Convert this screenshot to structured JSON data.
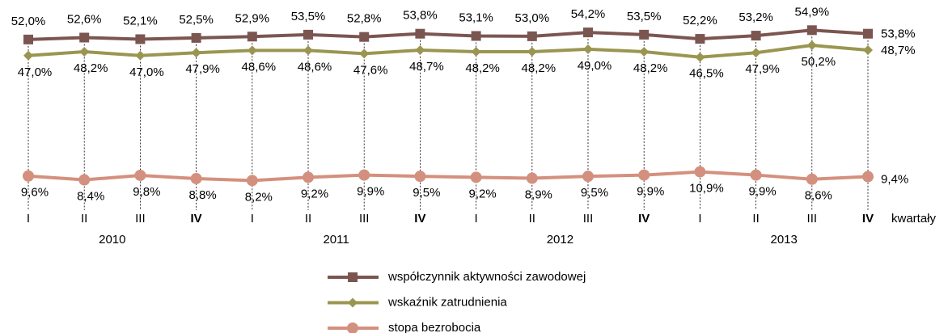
{
  "chart_data": {
    "type": "line",
    "categories": [
      "I",
      "II",
      "III",
      "IV",
      "I",
      "II",
      "III",
      "IV",
      "I",
      "II",
      "III",
      "IV",
      "I",
      "II",
      "III",
      "IV"
    ],
    "years": [
      "2010",
      "2011",
      "2012",
      "2013"
    ],
    "x_label": "kwartały",
    "ylim": [
      0,
      60
    ],
    "series": [
      {
        "name": "współczynnik aktywności zawodowej",
        "color": "#7b5651",
        "marker": "square",
        "values": [
          52.0,
          52.6,
          52.1,
          52.5,
          52.9,
          53.5,
          52.8,
          53.8,
          53.1,
          53.0,
          54.2,
          53.5,
          52.2,
          53.2,
          54.9,
          53.8
        ],
        "value_labels": [
          "52,0%",
          "52,6%",
          "52,1%",
          "52,5%",
          "52,9%",
          "53,5%",
          "52,8%",
          "53,8%",
          "53,1%",
          "53,0%",
          "54,2%",
          "53,5%",
          "52,2%",
          "53,2%",
          "54,9%",
          "53,8%"
        ]
      },
      {
        "name": "wskaźnik zatrudnienia",
        "color": "#9a9651",
        "marker": "diamond",
        "values": [
          47.0,
          48.2,
          47.0,
          47.9,
          48.6,
          48.6,
          47.6,
          48.7,
          48.2,
          48.2,
          49.0,
          48.2,
          46.5,
          47.9,
          50.2,
          48.7
        ],
        "value_labels": [
          "47,0%",
          "48,2%",
          "47,0%",
          "47,9%",
          "48,6%",
          "48,6%",
          "47,6%",
          "48,7%",
          "48,2%",
          "48,2%",
          "49,0%",
          "48,2%",
          "46,5%",
          "47,9%",
          "50,2%",
          "48,7%"
        ]
      },
      {
        "name": "stopa bezrobocia",
        "color": "#d4907e",
        "marker": "circle",
        "values": [
          9.6,
          8.4,
          9.8,
          8.8,
          8.2,
          9.2,
          9.9,
          9.5,
          9.2,
          8.9,
          9.5,
          9.9,
          10.9,
          9.9,
          8.6,
          9.4
        ],
        "value_labels": [
          "9,6%",
          "8,4%",
          "9,8%",
          "8,8%",
          "8,2%",
          "9,2%",
          "9,9%",
          "9,5%",
          "9,2%",
          "8,9%",
          "9,5%",
          "9,9%",
          "10,9%",
          "9,9%",
          "8,6%",
          "9,4%"
        ]
      }
    ]
  }
}
